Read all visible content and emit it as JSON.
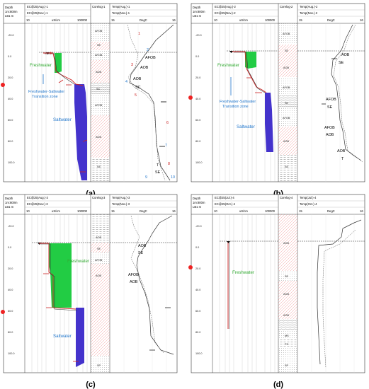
{
  "panels": [
    {
      "letter": "(a)",
      "header": {
        "depth": "Depth",
        "depth_unit": "1m:800m",
        "depth_sub": "LB1 m",
        "ec_top": "EC@25(Aug.)-1",
        "ec_bot": "EC@25(Nov.)-1",
        "ec_min": "10",
        "ec_unit": "uS/cm",
        "ec_max": "100000",
        "coreLog": "Corelog-1",
        "temp_top": "Temp(Aug.)-1",
        "temp_bot": "Temp(Nov.)-1",
        "t_min": "15",
        "t_unit": "DegC",
        "t_max": "16"
      },
      "depth_ticks": [
        "-20.0",
        "0.0",
        "20.0",
        "40.0",
        "60.0",
        "80.0",
        "100.0"
      ],
      "core": [
        "AFOB",
        "SE",
        "AFOB",
        "AOB",
        "SC",
        "AFOB",
        "AOB",
        "SE"
      ],
      "labels": {
        "fresh": "Freshwater",
        "trans": "Freshwater-Saltwater",
        "trans2": "Transition zone",
        "salt": "Saltwater"
      },
      "temp_ann": [
        "AFOB",
        "AOB",
        "AOB",
        "SC",
        "T",
        "SE"
      ],
      "nums_red": [
        "1",
        "3",
        "5",
        "6",
        "8"
      ],
      "nums_blue": [
        "2",
        "4",
        "7",
        "9",
        "10"
      ]
    },
    {
      "letter": "(b)",
      "header": {
        "depth": "Depth",
        "depth_unit": "1m:800m",
        "depth_sub": "LB1 m",
        "ec_top": "EC@25(Aug.)-2",
        "ec_bot": "EC@25(Nov.)-2",
        "ec_min": "10",
        "ec_unit": "uS/cm",
        "ec_max": "100000",
        "coreLog": "Corelog-2",
        "temp_top": "Temp(Aug.)-2",
        "temp_bot": "Temp(Nov.)-2",
        "t_min": "15",
        "t_unit": "DegC",
        "t_max": "16"
      },
      "depth_ticks": [
        "-20.0",
        "0.0",
        "20.0",
        "40.0",
        "60.0",
        "80.0",
        "100.0"
      ],
      "core": [
        "AFOB",
        "SE",
        "AOB",
        "AFOB",
        "SE",
        "AFOB",
        "AOB",
        "SE"
      ],
      "labels": {
        "fresh": "Freshwater",
        "trans": "Freshwater-Saltwater",
        "trans2": "Transition zone",
        "salt": "Saltwater"
      },
      "temp_ann": [
        "AOB",
        "SE",
        "AFOB",
        "SE",
        "AFOB",
        "AOB",
        "AOB",
        "T"
      ]
    },
    {
      "letter": "(c)",
      "header": {
        "depth": "Depth",
        "depth_unit": "1m:800m",
        "depth_sub": "LB1 m",
        "ec_top": "EC@25(Aug.)-3",
        "ec_bot": "EC@25(Nov.)-3",
        "ec_min": "10",
        "ec_unit": "uS/cm",
        "ec_max": "100000",
        "coreLog": "Corelog-3",
        "temp_top": "Temp(Aug.)-3",
        "temp_bot": "Temp(Nov.)-3",
        "t_min": "15",
        "t_unit": "DegC",
        "t_max": "16"
      },
      "depth_ticks": [
        "-20.0",
        "0.0",
        "20.0",
        "40.0",
        "60.0",
        "80.0",
        "100.0"
      ],
      "core": [
        "AOB",
        "SE",
        "AFOB",
        "AOB",
        "SP"
      ],
      "labels": {
        "fresh": "Freshwater",
        "salt": "Saltwater"
      },
      "temp_ann": [
        "AOB",
        "SE",
        "AFOB",
        "AOB"
      ]
    },
    {
      "letter": "(d)",
      "header": {
        "depth": "Depth",
        "depth_unit": "1m:800m",
        "depth_sub": "LB1 m",
        "ec_top": "EC@25(Jul.)-4",
        "ec_bot": "EC@25(Oct.)-4",
        "ec_min": "10",
        "ec_unit": "uS/cm",
        "ec_max": "100000",
        "coreLog": "Corelog-4",
        "temp_top": "Temp(Jul.)-4",
        "temp_bot": "Temp(Oct.)-4",
        "t_min": "15",
        "t_unit": "DegC",
        "t_max": "16"
      },
      "depth_ticks": [
        "-20.0",
        "0.0",
        "20.0",
        "40.0",
        "60.0",
        "80.0",
        "100.0"
      ],
      "core": [
        "AOB",
        "SE",
        "AOB",
        "AOB",
        "MS",
        "TS",
        "SP"
      ],
      "labels": {
        "fresh": "Freshwater"
      }
    }
  ]
}
